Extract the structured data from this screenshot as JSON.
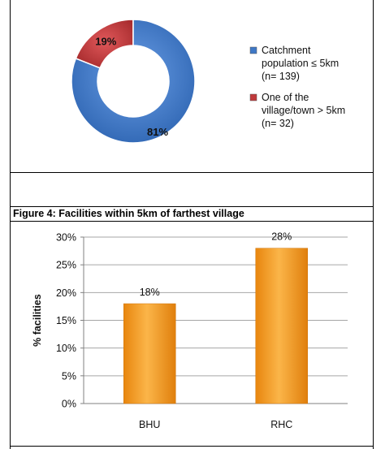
{
  "charts": {
    "donut": {
      "chart_data": {
        "type": "pie",
        "slices": [
          {
            "label": "19%",
            "value": 19,
            "color": "#c0393b"
          },
          {
            "label": "81%",
            "value": 81,
            "color": "#3e78c6"
          }
        ],
        "legend": [
          {
            "lines": [
              "Catchment",
              "population ≤ 5km",
              "(n= 139)"
            ],
            "color": "#3e78c6"
          },
          {
            "lines": [
              "One of the",
              "village/town > 5km",
              "(n= 32)"
            ],
            "color": "#c0393b"
          }
        ],
        "legend_position": "right"
      }
    },
    "bar": {
      "caption": "Figure 4: Facilities within 5km of farthest village",
      "chart_data": {
        "type": "bar",
        "categories": [
          "BHU",
          "RHC"
        ],
        "values": [
          18,
          28
        ],
        "value_labels": [
          "18%",
          "28%"
        ],
        "ylabel": "% facilities",
        "ylim": [
          0,
          30
        ],
        "yticks": [
          "0%",
          "5%",
          "10%",
          "15%",
          "20%",
          "25%",
          "30%"
        ],
        "grid": true,
        "bar_color": "#f39a1f"
      }
    }
  }
}
